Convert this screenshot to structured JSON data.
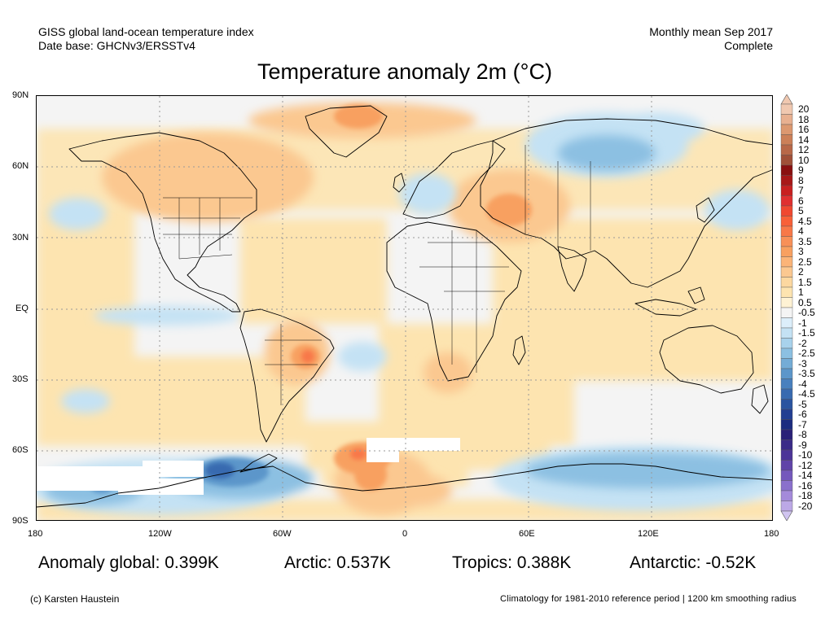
{
  "header": {
    "left_line1": "GISS global land-ocean temperature index",
    "left_line2": "Date base: GHCNv3/ERSSTv4",
    "right_line1": "Monthly mean Sep 2017",
    "right_line2": "Complete"
  },
  "title": "Temperature anomaly 2m (°C)",
  "axes": {
    "lat_labels": [
      "90N",
      "60N",
      "30N",
      "EQ",
      "30S",
      "60S",
      "90S"
    ],
    "lon_labels": [
      "180",
      "120W",
      "60W",
      "0",
      "60E",
      "120E",
      "180"
    ]
  },
  "colorbar": {
    "labels": [
      "20",
      "18",
      "16",
      "14",
      "12",
      "10",
      "9",
      "8",
      "7",
      "6",
      "5",
      "4.5",
      "4",
      "3.5",
      "3",
      "2.5",
      "2",
      "1.5",
      "1",
      "0.5",
      "-0.5",
      "-1",
      "-1.5",
      "-2",
      "-2.5",
      "-3",
      "-3.5",
      "-4",
      "-4.5",
      "-5",
      "-6",
      "-7",
      "-8",
      "-9",
      "-10",
      "-12",
      "-14",
      "-16",
      "-18",
      "-20"
    ],
    "colors": [
      "#f0c8b0",
      "#e8b090",
      "#dc9870",
      "#cc8058",
      "#b86848",
      "#a05038",
      "#8a1010",
      "#a81818",
      "#c82020",
      "#e03030",
      "#f04830",
      "#f86038",
      "#f87848",
      "#f89058",
      "#f8a060",
      "#fbb478",
      "#fbc890",
      "#fcd8a0",
      "#fde4b0",
      "#fef2d4",
      "#f4f4f4",
      "#dceefa",
      "#c4e2f4",
      "#a8d2ec",
      "#8cc0e2",
      "#74acd6",
      "#5c96ca",
      "#4880be",
      "#386ab0",
      "#2a54a0",
      "#223e92",
      "#1c2c80",
      "#2a2078",
      "#3a2a88",
      "#4c3498",
      "#6044a8",
      "#7458bc",
      "#8a70cc",
      "#a48ada",
      "#bca8e6"
    ],
    "top_arrow": "#f0c8b0",
    "bottom_arrow": "#d0c4f0"
  },
  "stats": {
    "global": "Anomaly global: 0.399K",
    "arctic": "Arctic: 0.537K",
    "tropics": "Tropics: 0.388K",
    "antarctic": "Antarctic: -0.52K"
  },
  "footer": {
    "copyright": "(c) Karsten Haustein",
    "note": "Climatology for 1981-2010 reference period | 1200 km smoothing radius"
  }
}
